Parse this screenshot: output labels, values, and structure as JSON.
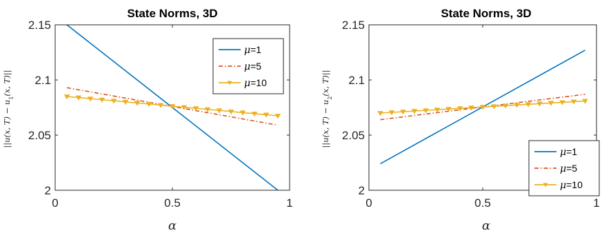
{
  "chart_data": [
    {
      "type": "line",
      "title": "State Norms, 3D",
      "xlabel": "α",
      "ylabel": {
        "pre": "||",
        "u": "u",
        "x": "(x, T) − u",
        "sub": "1",
        "post": "(x, T)||"
      },
      "xlim": [
        0,
        1
      ],
      "ylim": [
        2,
        2.15
      ],
      "xticks": [
        "0",
        "0.5",
        "1"
      ],
      "yticks": [
        "2",
        "2.05",
        "2.1",
        "2.15"
      ],
      "legend_position": "top-right",
      "series": [
        {
          "name": {
            "sym": "μ",
            "rest": "=1"
          },
          "color": "#0072BD",
          "style": "solid",
          "marker": "none",
          "x": [
            0.05,
            0.95
          ],
          "y": [
            2.15,
            2.0
          ]
        },
        {
          "name": {
            "sym": "μ",
            "rest": "=5"
          },
          "color": "#D95319",
          "style": "dashdot",
          "marker": "none",
          "x": [
            0.05,
            0.95
          ],
          "y": [
            2.093,
            2.059
          ]
        },
        {
          "name": {
            "sym": "μ",
            "rest": "=10"
          },
          "color": "#EDB120",
          "style": "solid",
          "marker": "triangle-down",
          "x": [
            0.05,
            0.95
          ],
          "y": [
            2.085,
            2.0675
          ],
          "markers": 19
        }
      ]
    },
    {
      "type": "line",
      "title": "State Norms, 3D",
      "xlabel": "α",
      "ylabel": {
        "pre": "||",
        "u": "u",
        "x": "(x, T) − u",
        "sub": "2",
        "post": "(x, T)||"
      },
      "xlim": [
        0,
        1
      ],
      "ylim": [
        2,
        2.15
      ],
      "xticks": [
        "0",
        "0.5",
        "1"
      ],
      "yticks": [
        "2",
        "2.05",
        "2.1",
        "2.15"
      ],
      "legend_position": "bottom-right",
      "series": [
        {
          "name": {
            "sym": "μ",
            "rest": "=1"
          },
          "color": "#0072BD",
          "style": "solid",
          "marker": "none",
          "x": [
            0.05,
            0.95
          ],
          "y": [
            2.024,
            2.127
          ]
        },
        {
          "name": {
            "sym": "μ",
            "rest": "=5"
          },
          "color": "#D95319",
          "style": "dashdot",
          "marker": "none",
          "x": [
            0.05,
            0.95
          ],
          "y": [
            2.064,
            2.087
          ]
        },
        {
          "name": {
            "sym": "μ",
            "rest": "=10"
          },
          "color": "#EDB120",
          "style": "solid",
          "marker": "triangle-down",
          "x": [
            0.05,
            0.95
          ],
          "y": [
            2.07,
            2.081
          ],
          "markers": 19
        }
      ]
    }
  ]
}
